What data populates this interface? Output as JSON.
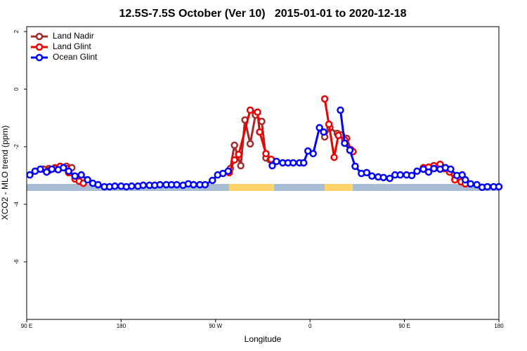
{
  "chart_data": {
    "type": "line",
    "title": "12.5S-7.5S October (Ver 10)   2015-01-01 to 2020-12-18",
    "x_label": "Longitude",
    "y_label": "XCO2 - MLO trend (ppm)",
    "xlim": [
      90,
      540
    ],
    "ylim": [
      -8,
      2.17
    ],
    "xticks": [
      {
        "value": 90,
        "label": "90 E"
      },
      {
        "value": 180,
        "label": "180"
      },
      {
        "value": 270,
        "label": "90 W"
      },
      {
        "value": 360,
        "label": "0"
      },
      {
        "value": 450,
        "label": "90 E"
      },
      {
        "value": 540,
        "label": "180"
      }
    ],
    "yticks": [
      2,
      0,
      -2,
      -4,
      -6
    ],
    "legend": "top-left",
    "series": [
      {
        "name": "Land Nadir",
        "color": "#a52a2a",
        "x": [
          106,
          111,
          117,
          122,
          128,
          133,
          200,
          284,
          288,
          294,
          298,
          303,
          308,
          314,
          318,
          322,
          340,
          374,
          379,
          386,
          390,
          395,
          399,
          450,
          469,
          474,
          480,
          485,
          490,
          493
        ],
        "values": [
          -2.78,
          -2.76,
          -2.73,
          -2.71,
          -2.68,
          -2.73,
          null,
          -2.76,
          -1.95,
          -2.66,
          -1.07,
          -1.9,
          -0.9,
          -1.12,
          -2.39,
          -2.46,
          null,
          -1.66,
          -1.34,
          -1.54,
          -1.59,
          -1.71,
          -2.1,
          null,
          -2.78,
          -2.76,
          -2.73,
          -2.68,
          -2.76,
          -2.83
        ]
      },
      {
        "name": "Land Glint",
        "color": "#ee0000",
        "x": [
          111,
          117,
          122,
          128,
          130,
          136,
          140,
          144,
          200,
          283,
          288,
          292,
          303,
          310,
          312,
          318,
          323,
          340,
          374,
          378,
          383,
          387,
          393,
          398,
          401,
          450,
          468,
          473,
          478,
          484,
          488,
          493,
          498,
          504,
          508
        ],
        "values": [
          -2.83,
          -2.76,
          -2.68,
          -2.76,
          -2.9,
          -3.12,
          -3.2,
          -3.27,
          null,
          -2.9,
          -2.46,
          -2.27,
          -0.73,
          -0.8,
          -1.49,
          -2.24,
          -2.44,
          null,
          -0.34,
          -1.22,
          -2.37,
          -1.61,
          -1.76,
          -2.12,
          -2.17,
          null,
          -2.73,
          -2.71,
          -2.66,
          -2.61,
          -2.76,
          -2.88,
          -3.15,
          -3.22,
          -3.29
        ]
      },
      {
        "name": "Ocean Glint",
        "color": "#0000ff",
        "x": [
          93,
          98,
          103,
          109,
          114,
          120,
          125,
          130,
          136,
          142,
          148,
          153,
          158,
          164,
          169,
          174,
          180,
          185,
          190,
          196,
          201,
          207,
          212,
          217,
          223,
          228,
          233,
          239,
          244,
          249,
          255,
          260,
          267,
          272,
          277,
          282,
          300,
          324,
          328,
          334,
          339,
          344,
          350,
          354,
          358,
          363,
          369,
          373,
          380,
          389,
          393,
          398,
          403,
          409,
          414,
          419,
          425,
          430,
          436,
          441,
          446,
          452,
          457,
          462,
          468,
          473,
          478,
          484,
          489,
          494,
          500,
          505,
          508,
          513,
          519,
          524,
          529,
          535,
          540
        ],
        "values": [
          -2.98,
          -2.85,
          -2.78,
          -2.88,
          -2.78,
          -2.8,
          -2.73,
          -2.85,
          -3.02,
          -2.98,
          -3.15,
          -3.27,
          -3.32,
          -3.39,
          -3.39,
          -3.37,
          -3.37,
          -3.39,
          -3.37,
          -3.37,
          -3.34,
          -3.34,
          -3.34,
          -3.32,
          -3.32,
          -3.32,
          -3.32,
          -3.34,
          -3.29,
          -3.32,
          -3.32,
          -3.32,
          -3.17,
          -2.98,
          -2.93,
          -2.85,
          null,
          -2.66,
          -2.51,
          -2.56,
          -2.56,
          -2.56,
          -2.56,
          -2.56,
          -2.15,
          -2.24,
          -1.34,
          -1.49,
          null,
          -0.73,
          -1.88,
          -2.12,
          -2.68,
          -2.93,
          -2.9,
          -3.02,
          -3.05,
          -3.07,
          -3.1,
          -2.98,
          -2.98,
          -2.98,
          -3.0,
          -2.85,
          -2.78,
          -2.88,
          -2.76,
          -2.78,
          -2.73,
          -2.78,
          -3.0,
          -2.98,
          -3.15,
          -3.29,
          -3.32,
          -3.41,
          -3.39,
          -3.39,
          -3.39
        ]
      }
    ]
  }
}
